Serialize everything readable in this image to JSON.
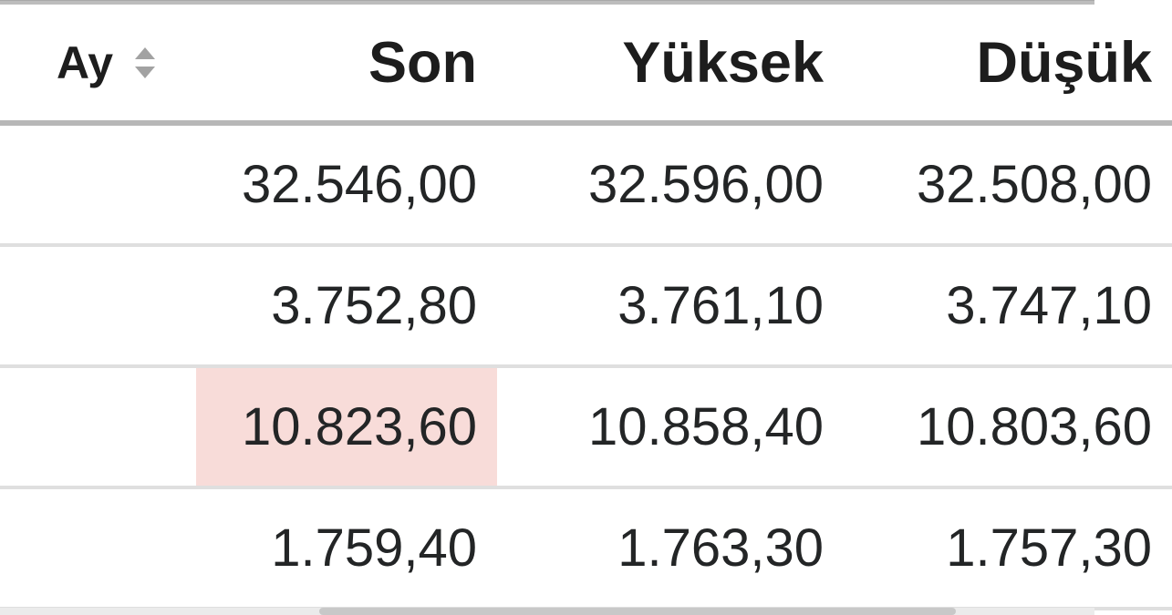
{
  "table": {
    "columns": [
      {
        "key": "ay",
        "label": "Ay",
        "sortable": true
      },
      {
        "key": "son",
        "label": "Son",
        "sortable": false
      },
      {
        "key": "yuksek",
        "label": "Yüksek",
        "sortable": false
      },
      {
        "key": "dusuk",
        "label": "Düşük",
        "sortable": false
      }
    ],
    "rows": [
      {
        "ay": "",
        "son": "32.546,00",
        "yuksek": "32.596,00",
        "dusuk": "32.508,00",
        "highlighted_cell": null
      },
      {
        "ay": "",
        "son": "3.752,80",
        "yuksek": "3.761,10",
        "dusuk": "3.747,10",
        "highlighted_cell": null
      },
      {
        "ay": "",
        "son": "10.823,60",
        "yuksek": "10.858,40",
        "dusuk": "10.803,60",
        "highlighted_cell": "son"
      },
      {
        "ay": "",
        "son": "1.759,40",
        "yuksek": "1.763,30",
        "dusuk": "1.757,30",
        "highlighted_cell": null
      }
    ]
  },
  "icons": {
    "sort": "sort-arrows-up-down"
  },
  "colors": {
    "cell_flash_highlight": "#f8dcd9",
    "header_underline": "#b7b7b7",
    "row_separator": "#dfdfdf",
    "sort_icon": "#a2a2a2"
  }
}
